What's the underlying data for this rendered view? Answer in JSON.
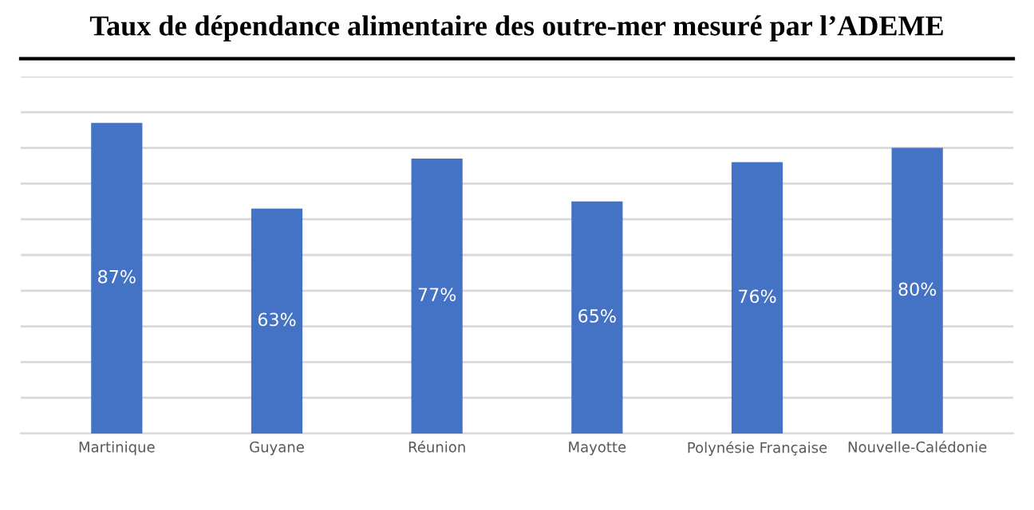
{
  "chart_data": {
    "type": "bar",
    "title": "Taux de dépendance alimentaire des outre-mer mesuré par l’ADEME",
    "categories": [
      "Martinique",
      "Guyane",
      "Réunion",
      "Mayotte",
      "Polynésie Française",
      "Nouvelle-Calédonie"
    ],
    "values": [
      87,
      63,
      77,
      65,
      76,
      80
    ],
    "value_labels": [
      "87%",
      "63%",
      "77%",
      "65%",
      "76%",
      "80%"
    ],
    "color": "#4472c4",
    "ylim": [
      0,
      100
    ],
    "yticks": [
      {
        "value": 0,
        "label": null
      },
      {
        "value": 10,
        "label": null
      },
      {
        "value": 20,
        "label": null
      },
      {
        "value": 30,
        "label": null
      },
      {
        "value": 40,
        "label": null
      },
      {
        "value": 50,
        "label": null
      },
      {
        "value": 60,
        "label": null
      },
      {
        "value": 70,
        "label": null
      },
      {
        "value": 80,
        "label": null
      },
      {
        "value": 90,
        "label": null
      },
      {
        "value": 100,
        "label": null
      }
    ],
    "grid": "y",
    "tick_labels": "x"
  }
}
